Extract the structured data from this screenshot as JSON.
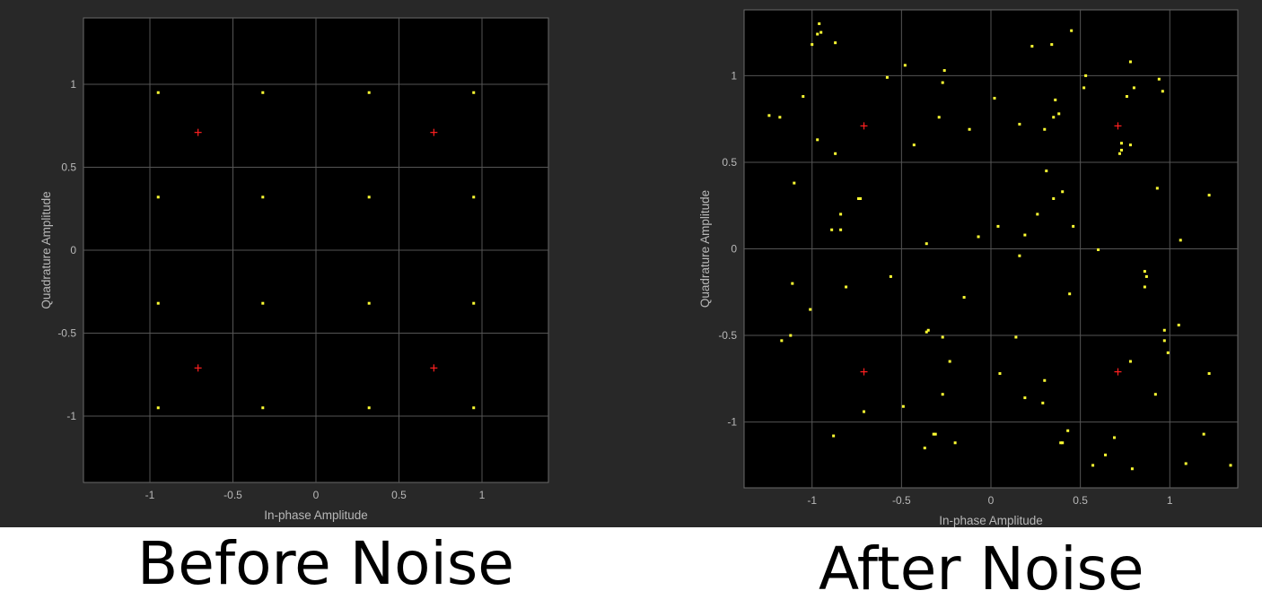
{
  "colors": {
    "figure_bg": "#282828",
    "axes_bg": "#000000",
    "grid": "#555555",
    "tick_text": "#b8b8b8",
    "received_marker": "#ffff33",
    "reference_marker": "#ff2020"
  },
  "captions": {
    "left": "Before Noise",
    "right": "After Noise"
  },
  "chart_data": [
    {
      "type": "scatter",
      "title": "",
      "xlabel": "In-phase Amplitude",
      "ylabel": "Quadrature Amplitude",
      "xlim": [
        -1.4,
        1.4
      ],
      "ylim": [
        -1.4,
        1.4
      ],
      "xticks": [
        -1,
        -0.5,
        0,
        0.5,
        1
      ],
      "xtick_labels": [
        "-1",
        "-0.5",
        "0",
        "0.5",
        "1"
      ],
      "yticks": [
        -1,
        -0.5,
        0,
        0.5,
        1
      ],
      "ytick_labels": [
        "-1",
        "-0.5",
        "0",
        "0.5",
        "1"
      ],
      "grid": true,
      "series": [
        {
          "marker": "dot",
          "color": "#ffff33",
          "points": [
            [
              -0.95,
              0.95
            ],
            [
              -0.32,
              0.95
            ],
            [
              0.32,
              0.95
            ],
            [
              0.95,
              0.95
            ],
            [
              -0.95,
              0.32
            ],
            [
              -0.32,
              0.32
            ],
            [
              0.32,
              0.32
            ],
            [
              0.95,
              0.32
            ],
            [
              -0.95,
              -0.32
            ],
            [
              -0.32,
              -0.32
            ],
            [
              0.32,
              -0.32
            ],
            [
              0.95,
              -0.32
            ],
            [
              -0.95,
              -0.95
            ],
            [
              -0.32,
              -0.95
            ],
            [
              0.32,
              -0.95
            ],
            [
              0.95,
              -0.95
            ]
          ]
        },
        {
          "marker": "plus",
          "color": "#ff2020",
          "points": [
            [
              -0.71,
              0.71
            ],
            [
              0.71,
              0.71
            ],
            [
              -0.71,
              -0.71
            ],
            [
              0.71,
              -0.71
            ]
          ]
        }
      ]
    },
    {
      "type": "scatter",
      "title": "",
      "xlabel": "In-phase Amplitude",
      "ylabel": "Quadrature Amplitude",
      "xlim": [
        -1.38,
        1.38
      ],
      "ylim": [
        -1.38,
        1.38
      ],
      "xticks": [
        -1,
        -0.5,
        0,
        0.5,
        1
      ],
      "xtick_labels": [
        "-1",
        "-0.5",
        "0",
        "0.5",
        "1"
      ],
      "yticks": [
        -1,
        -0.5,
        0,
        0.5,
        1
      ],
      "ytick_labels": [
        "-1",
        "-0.5",
        "0",
        "0.5",
        "1"
      ],
      "grid": true,
      "series": [
        {
          "marker": "dot",
          "color": "#ffff33",
          "points": [
            [
              -0.96,
              1.3
            ],
            [
              -0.97,
              1.24
            ],
            [
              -0.95,
              1.25
            ],
            [
              -1.0,
              1.18
            ],
            [
              -0.87,
              1.19
            ],
            [
              -1.24,
              0.77
            ],
            [
              -1.18,
              0.76
            ],
            [
              -1.05,
              0.88
            ],
            [
              -0.58,
              0.99
            ],
            [
              -0.48,
              1.06
            ],
            [
              -0.26,
              1.03
            ],
            [
              -0.27,
              0.96
            ],
            [
              0.02,
              0.87
            ],
            [
              0.23,
              1.17
            ],
            [
              0.34,
              1.18
            ],
            [
              0.45,
              1.26
            ],
            [
              0.53,
              1.0
            ],
            [
              0.52,
              0.93
            ],
            [
              0.78,
              1.08
            ],
            [
              0.8,
              0.93
            ],
            [
              0.76,
              0.88
            ],
            [
              0.94,
              0.98
            ],
            [
              0.96,
              0.91
            ],
            [
              -0.97,
              0.63
            ],
            [
              -0.87,
              0.55
            ],
            [
              -0.43,
              0.6
            ],
            [
              -0.29,
              0.76
            ],
            [
              -0.12,
              0.69
            ],
            [
              0.16,
              0.72
            ],
            [
              0.3,
              0.69
            ],
            [
              0.35,
              0.76
            ],
            [
              0.38,
              0.78
            ],
            [
              0.36,
              0.86
            ],
            [
              0.73,
              0.61
            ],
            [
              0.78,
              0.6
            ],
            [
              0.72,
              0.55
            ],
            [
              0.73,
              0.57
            ],
            [
              0.31,
              0.45
            ],
            [
              0.93,
              0.35
            ],
            [
              1.22,
              0.31
            ],
            [
              -1.1,
              0.38
            ],
            [
              -0.74,
              0.29
            ],
            [
              -0.73,
              0.29
            ],
            [
              -0.84,
              0.2
            ],
            [
              -0.89,
              0.11
            ],
            [
              -0.84,
              0.11
            ],
            [
              0.35,
              0.29
            ],
            [
              0.4,
              0.33
            ],
            [
              0.26,
              0.2
            ],
            [
              0.04,
              0.13
            ],
            [
              0.19,
              0.08
            ],
            [
              0.46,
              0.13
            ],
            [
              -0.36,
              0.03
            ],
            [
              -0.07,
              0.07
            ],
            [
              0.6,
              -0.005
            ],
            [
              1.06,
              0.05
            ],
            [
              -0.56,
              -0.16
            ],
            [
              -0.81,
              -0.22
            ],
            [
              -1.11,
              -0.2
            ],
            [
              -1.01,
              -0.35
            ],
            [
              -0.15,
              -0.28
            ],
            [
              0.16,
              -0.04
            ],
            [
              0.44,
              -0.26
            ],
            [
              0.86,
              -0.13
            ],
            [
              0.87,
              -0.16
            ],
            [
              0.86,
              -0.22
            ],
            [
              -1.12,
              -0.5
            ],
            [
              -1.17,
              -0.53
            ],
            [
              -0.35,
              -0.47
            ],
            [
              -0.36,
              -0.48
            ],
            [
              -0.27,
              -0.51
            ],
            [
              0.14,
              -0.51
            ],
            [
              0.97,
              -0.47
            ],
            [
              0.97,
              -0.53
            ],
            [
              1.05,
              -0.44
            ],
            [
              0.99,
              -0.6
            ],
            [
              -0.23,
              -0.65
            ],
            [
              0.78,
              -0.65
            ],
            [
              0.05,
              -0.72
            ],
            [
              0.3,
              -0.76
            ],
            [
              1.22,
              -0.72
            ],
            [
              -0.27,
              -0.84
            ],
            [
              0.19,
              -0.86
            ],
            [
              0.29,
              -0.89
            ],
            [
              0.92,
              -0.84
            ],
            [
              -0.49,
              -0.91
            ],
            [
              -0.71,
              -0.94
            ],
            [
              -0.88,
              -1.08
            ],
            [
              -0.32,
              -1.07
            ],
            [
              -0.31,
              -1.07
            ],
            [
              -0.2,
              -1.12
            ],
            [
              -0.37,
              -1.15
            ],
            [
              0.43,
              -1.05
            ],
            [
              0.39,
              -1.12
            ],
            [
              0.4,
              -1.12
            ],
            [
              0.69,
              -1.09
            ],
            [
              1.19,
              -1.07
            ],
            [
              0.57,
              -1.25
            ],
            [
              0.64,
              -1.19
            ],
            [
              0.79,
              -1.27
            ],
            [
              1.09,
              -1.24
            ],
            [
              1.34,
              -1.25
            ]
          ]
        },
        {
          "marker": "plus",
          "color": "#ff2020",
          "points": [
            [
              -0.71,
              0.71
            ],
            [
              0.71,
              0.71
            ],
            [
              -0.71,
              -0.71
            ],
            [
              0.71,
              -0.71
            ]
          ]
        }
      ]
    }
  ]
}
